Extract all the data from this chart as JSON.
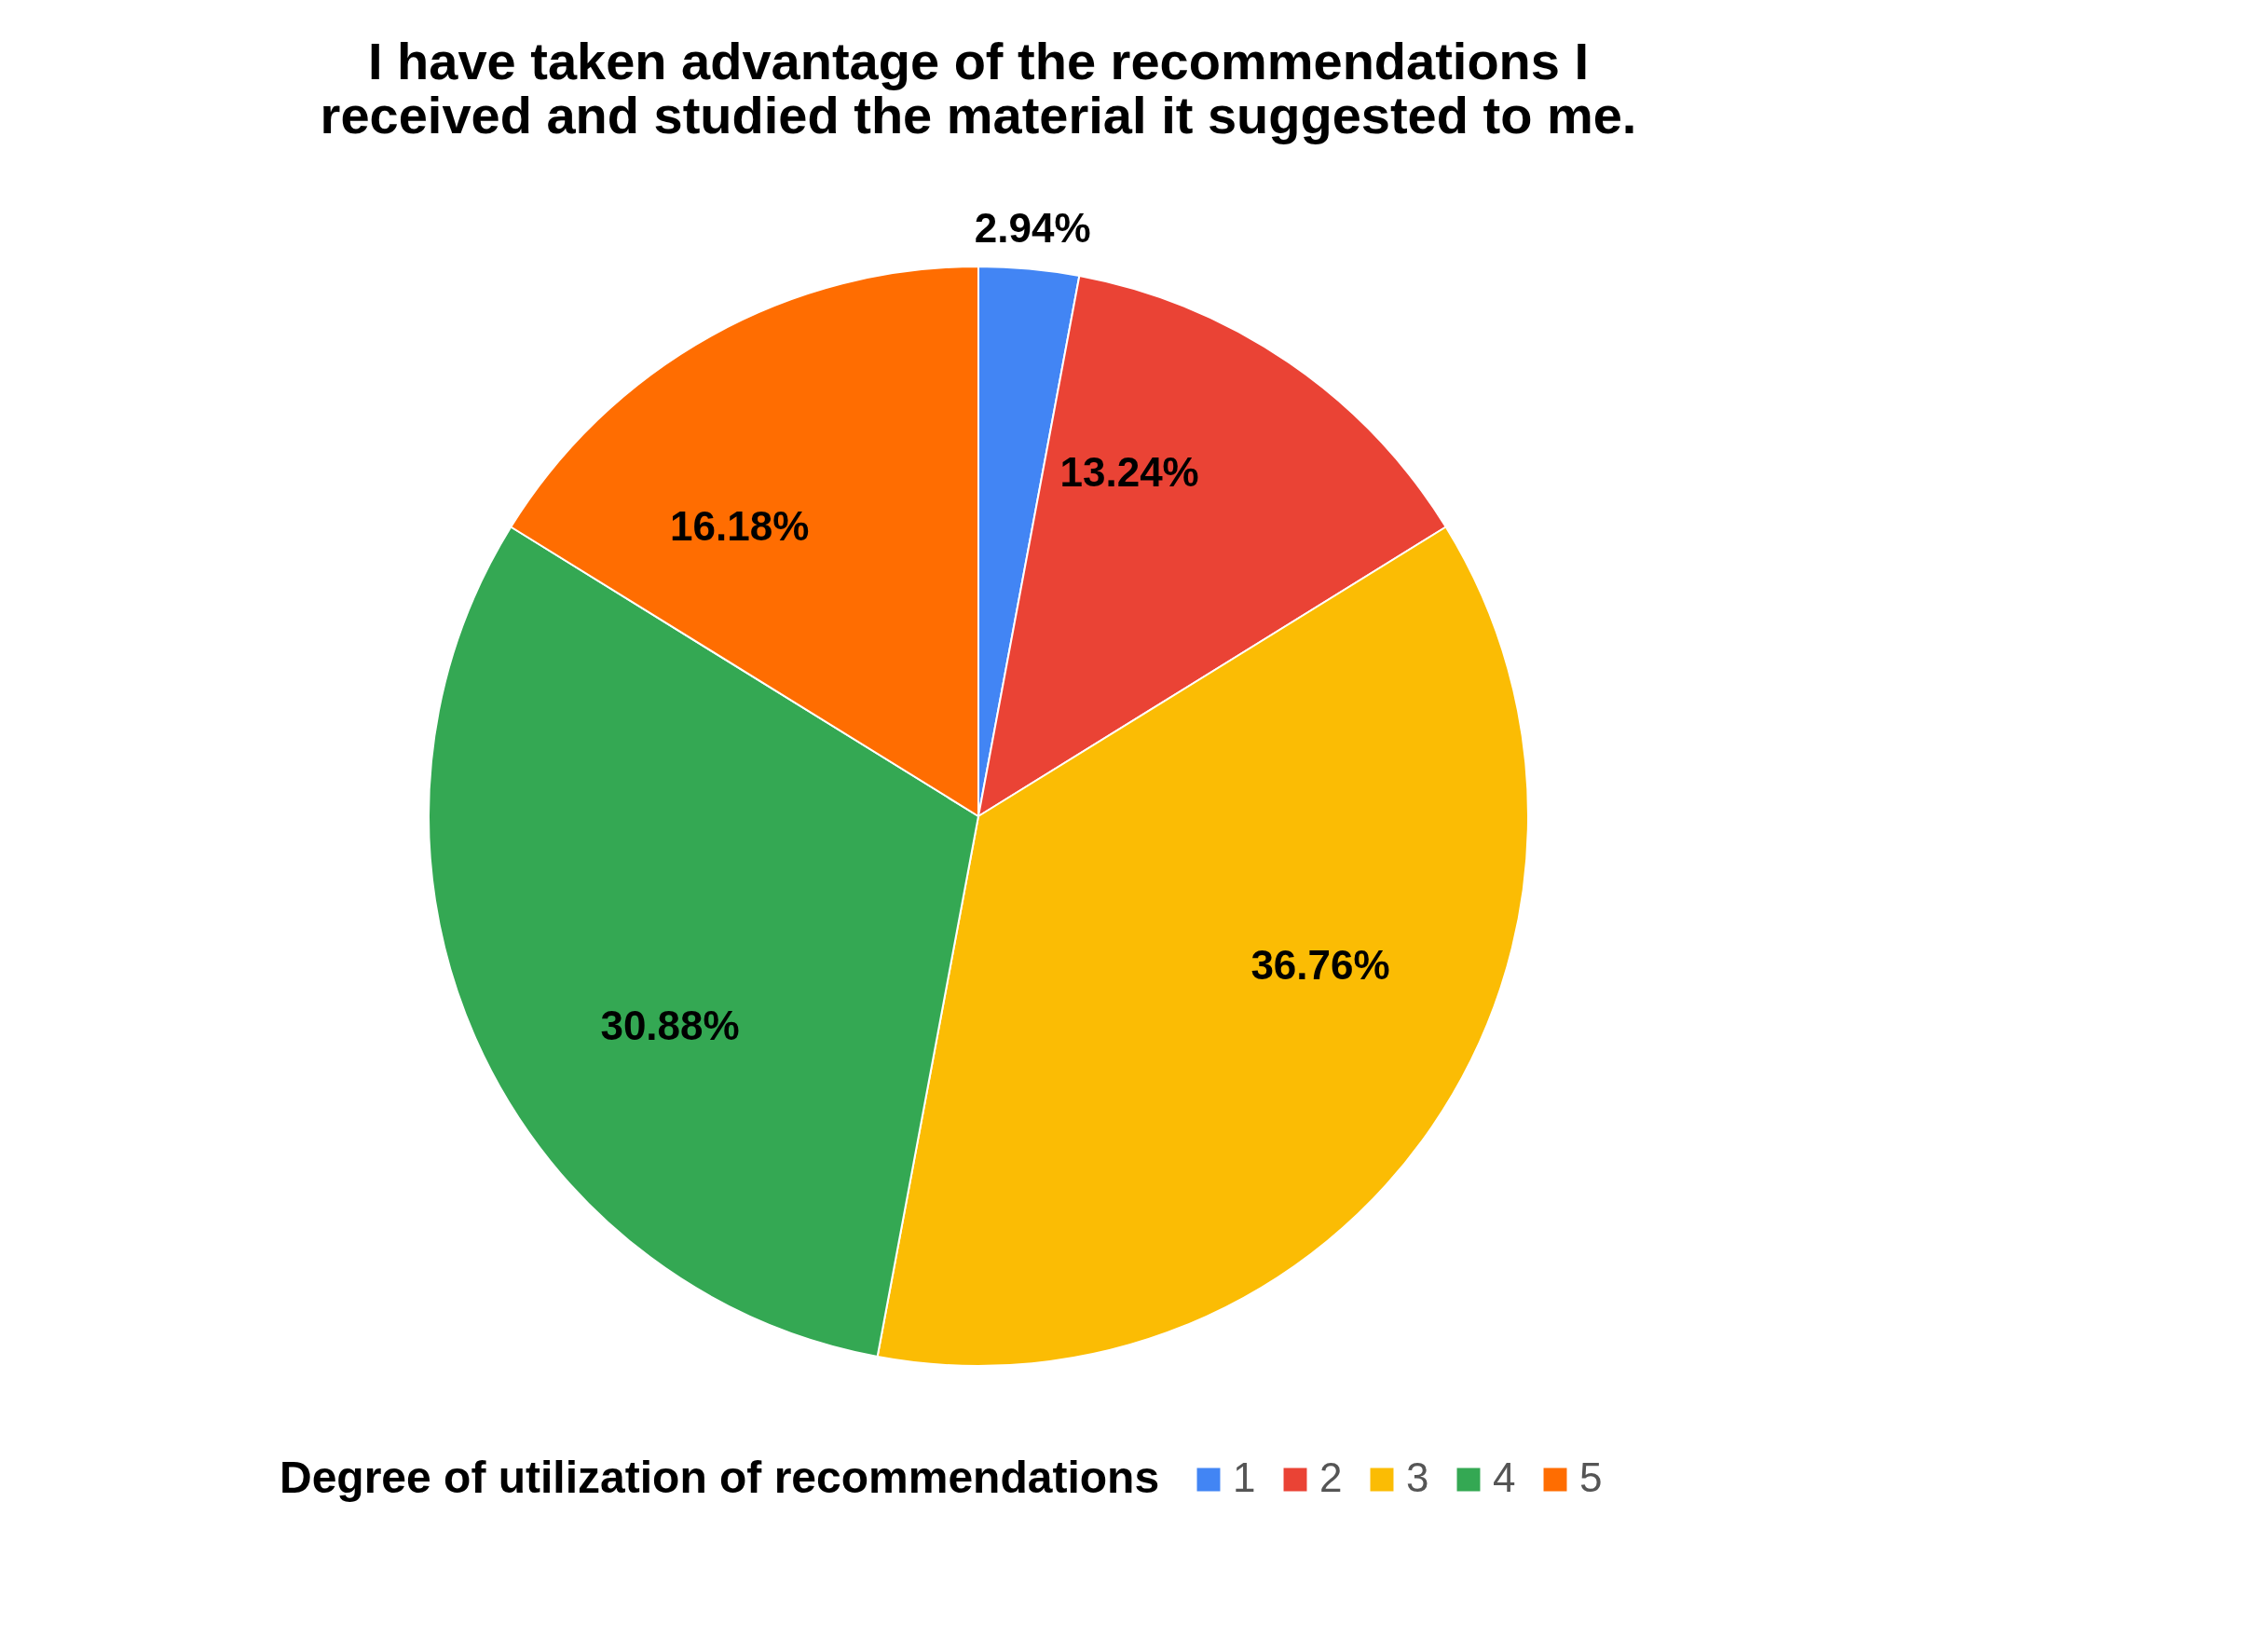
{
  "chart_data": {
    "type": "pie",
    "title": [
      "I have taken advantage of the recommendations I",
      "received and studied the material it suggested to me."
    ],
    "legend_title": "Degree of utilization of recommendations",
    "categories": [
      "1",
      "2",
      "3",
      "4",
      "5"
    ],
    "values": [
      2.94,
      13.24,
      36.76,
      30.88,
      16.18
    ],
    "value_labels": [
      "2.94%",
      "13.24%",
      "36.76%",
      "30.88%",
      "16.18%"
    ],
    "colors": [
      "#4285f4",
      "#ea4335",
      "#fbbc04",
      "#34a853",
      "#ff6d01"
    ],
    "legend": "bottom"
  }
}
